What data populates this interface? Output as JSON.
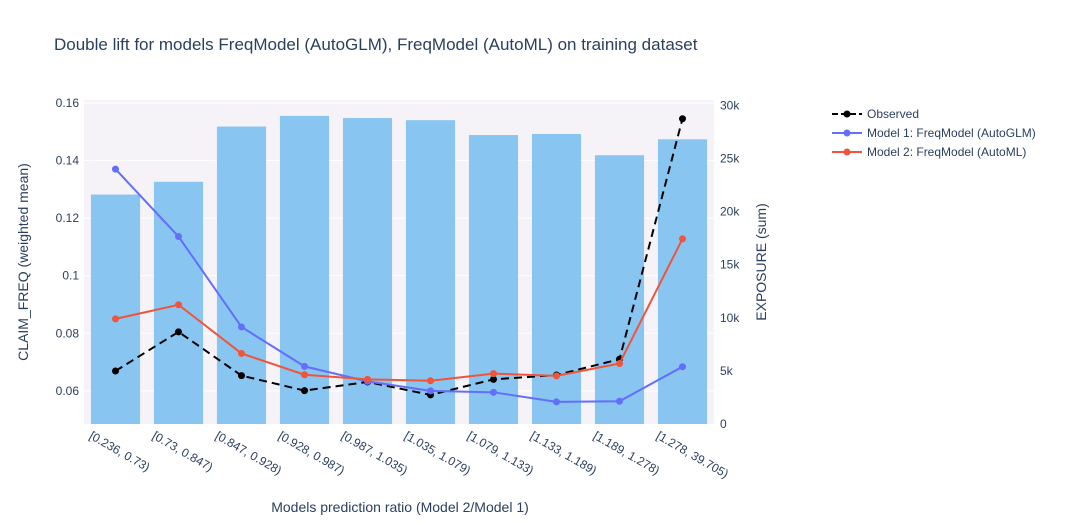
{
  "chart_data": {
    "type": "bar+line",
    "title": "Double lift for models FreqModel (AutoGLM), FreqModel (AutoML) on training dataset",
    "xlabel": "Models prediction ratio (Model 2/Model 1)",
    "ylabel_left": "CLAIM_FREQ (weighted mean)",
    "ylabel_right": "EXPOSURE (sum)",
    "categories": [
      "[0.236, 0.73)",
      "[0.73, 0.847)",
      "[0.847, 0.928)",
      "[0.928, 0.987)",
      "[0.987, 1.035)",
      "[1.035, 1.079)",
      "[1.079, 1.133)",
      "[1.133, 1.189)",
      "[1.189, 1.278)",
      "[1.278, 39.705)"
    ],
    "ylim_left": [
      0.0485,
      0.161
    ],
    "yticks_left": [
      0.06,
      0.08,
      0.1,
      0.12,
      0.14,
      0.16
    ],
    "ytick_labels_left": [
      "0.06",
      "0.08",
      "0.1",
      "0.12",
      "0.14",
      "0.16"
    ],
    "ylim_right": [
      0,
      30500
    ],
    "yticks_right": [
      0,
      5000,
      10000,
      15000,
      20000,
      25000,
      30000
    ],
    "ytick_labels_right": [
      "0",
      "5k",
      "10k",
      "15k",
      "20k",
      "25k",
      "30k"
    ],
    "bars": {
      "name": "EXPOSURE",
      "color": "#88c5f1",
      "values": [
        21600,
        22800,
        28000,
        29000,
        28800,
        28600,
        27200,
        27300,
        25300,
        26800
      ]
    },
    "series": [
      {
        "name": "Observed",
        "color": "#000000",
        "dash": true,
        "values": [
          0.0669,
          0.0805,
          0.0653,
          0.0601,
          0.0631,
          0.0586,
          0.064,
          0.0655,
          0.071,
          0.1545
        ]
      },
      {
        "name": "Model 1: FreqModel (AutoGLM)",
        "color": "#636efa",
        "dash": false,
        "values": [
          0.137,
          0.1136,
          0.0822,
          0.0685,
          0.0633,
          0.06,
          0.0595,
          0.0562,
          0.0564,
          0.0684
        ]
      },
      {
        "name": "Model 2: FreqModel (AutoML)",
        "color": "#ef553b",
        "dash": false,
        "values": [
          0.085,
          0.0899,
          0.073,
          0.0656,
          0.064,
          0.0635,
          0.066,
          0.0652,
          0.0695,
          0.1128
        ]
      }
    ],
    "legend_position": "top-right",
    "plot_background": "#f5f3f8",
    "grid": true
  }
}
